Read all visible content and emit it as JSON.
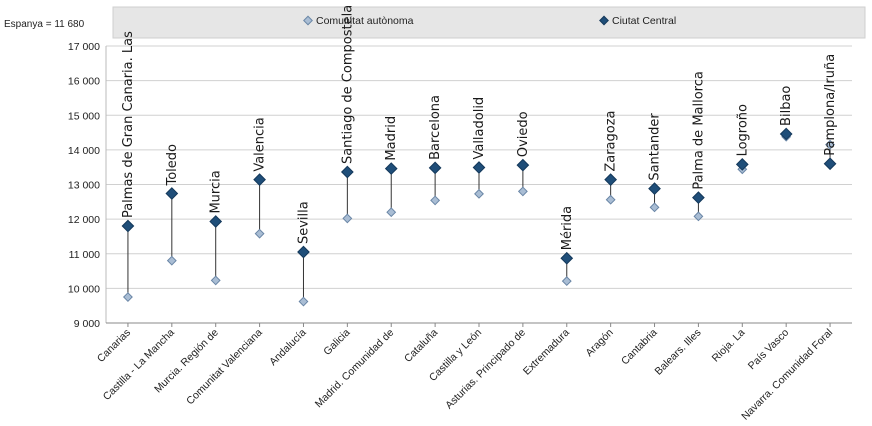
{
  "note": "Espanya = 11 680",
  "legend": [
    {
      "label": "Comunitat autònoma",
      "color": "#a9bdd4",
      "stroke": "#6a86a6"
    },
    {
      "label": "Ciutat Central",
      "color": "#1f4e79",
      "stroke": "#14385a"
    }
  ],
  "chart_data": {
    "type": "scatter",
    "subtype": "dot-plot",
    "ylim": [
      9000,
      17000
    ],
    "yticks": [
      9000,
      10000,
      11000,
      12000,
      13000,
      14000,
      15000,
      16000,
      17000
    ],
    "ytick_labels": [
      "9 000",
      "10 000",
      "11 000",
      "12 000",
      "13 000",
      "14 000",
      "15 000",
      "16 000",
      "17 000"
    ],
    "grid": true,
    "legend_position": "top",
    "categories": [
      "Canarias",
      "Castilla - La Mancha",
      "Murcia. Región de",
      "Comunitat Valenciana",
      "Andalucía",
      "Galicia",
      "Madrid. Comunidad de",
      "Cataluña",
      "Castilla y León",
      "Asturias. Principado de",
      "Extremadura",
      "Aragón",
      "Cantabria",
      "Balears. Illes",
      "Rioja. La",
      "País Vasco",
      "Navarra. Comunidad Foral"
    ],
    "cities": [
      "Palmas de Gran Canaria. Las",
      "Toledo",
      "Murcia",
      "Valencia",
      "Sevilla",
      "Santiago de Compostela",
      "Madrid",
      "Barcelona",
      "Valladolid",
      "Oviedo",
      "Mérida",
      "Zaragoza",
      "Santander",
      "Palma de Mallorca",
      "Logroño",
      "Bilbao",
      "Pamplona/Iruña"
    ],
    "series": [
      {
        "name": "Comunitat autònoma",
        "values": [
          9750,
          10800,
          10230,
          11580,
          9620,
          12020,
          12200,
          12540,
          12730,
          12800,
          10210,
          12560,
          12340,
          12080,
          13440,
          14380,
          14150
        ]
      },
      {
        "name": "Ciutat Central",
        "values": [
          11800,
          12740,
          11930,
          13140,
          11050,
          13360,
          13460,
          13480,
          13490,
          13560,
          10870,
          13140,
          12880,
          12620,
          13580,
          14460,
          13600
        ]
      }
    ]
  }
}
